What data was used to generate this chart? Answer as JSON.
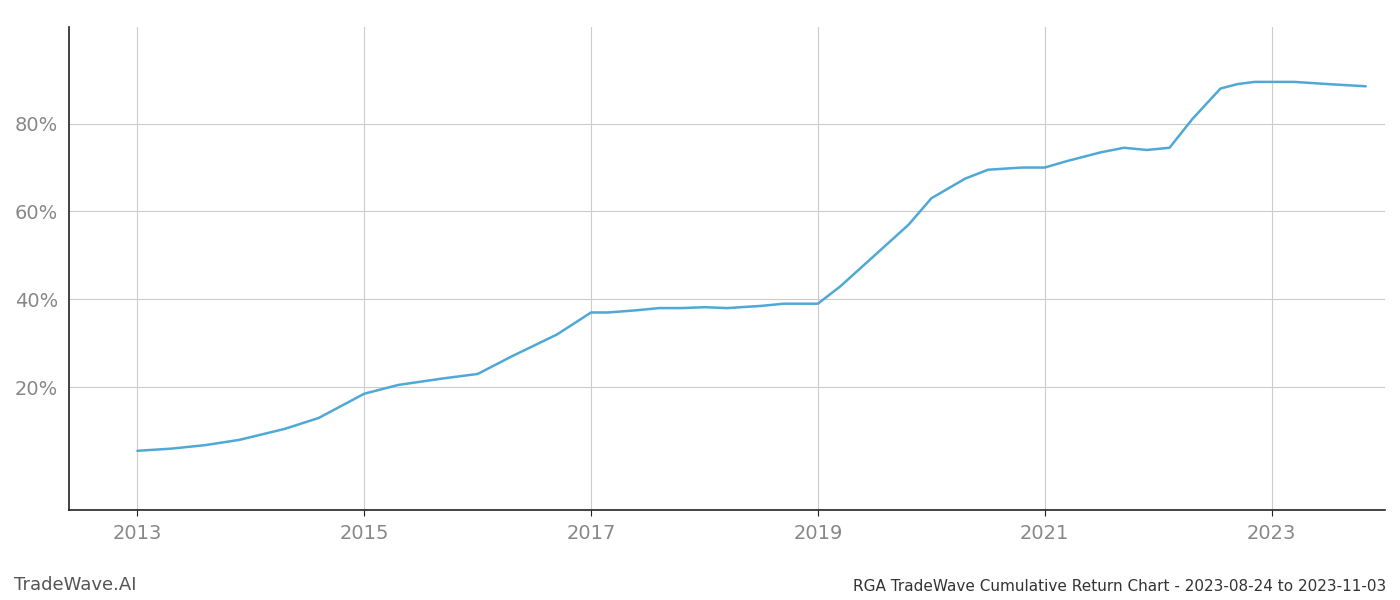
{
  "title": "RGA TradeWave Cumulative Return Chart - 2023-08-24 to 2023-11-03",
  "watermark": "TradeWave.AI",
  "line_color": "#4fa8d5",
  "background_color": "#ffffff",
  "grid_color": "#cccccc",
  "x_years": [
    2013.0,
    2013.3,
    2013.6,
    2013.9,
    2014.3,
    2014.6,
    2015.0,
    2015.3,
    2015.7,
    2016.0,
    2016.3,
    2016.7,
    2017.0,
    2017.15,
    2017.4,
    2017.6,
    2017.8,
    2018.0,
    2018.2,
    2018.5,
    2018.7,
    2019.0,
    2019.2,
    2019.5,
    2019.8,
    2020.0,
    2020.3,
    2020.5,
    2020.8,
    2021.0,
    2021.2,
    2021.5,
    2021.7,
    2021.9,
    2022.1,
    2022.3,
    2022.55,
    2022.7,
    2022.85,
    2023.0,
    2023.2,
    2023.5,
    2023.83
  ],
  "y_values": [
    5.5,
    6.0,
    6.8,
    8.0,
    10.5,
    13.0,
    18.5,
    20.5,
    22.0,
    23.0,
    27.0,
    32.0,
    37.0,
    37.0,
    37.5,
    38.0,
    38.0,
    38.2,
    38.0,
    38.5,
    39.0,
    39.0,
    43.0,
    50.0,
    57.0,
    63.0,
    67.5,
    69.5,
    70.0,
    70.0,
    71.5,
    73.5,
    74.5,
    74.0,
    74.5,
    81.0,
    88.0,
    89.0,
    89.5,
    89.5,
    89.5,
    89.0,
    88.5
  ],
  "xlim": [
    2012.4,
    2024.0
  ],
  "ylim": [
    -8,
    102
  ],
  "yticks": [
    20,
    40,
    60,
    80
  ],
  "xticks": [
    2013,
    2015,
    2017,
    2019,
    2021,
    2023
  ],
  "tick_label_color": "#888888",
  "spine_color": "#222222",
  "title_color": "#333333",
  "watermark_color": "#555555",
  "title_fontsize": 11,
  "watermark_fontsize": 13,
  "tick_fontsize": 14,
  "line_width": 1.8
}
